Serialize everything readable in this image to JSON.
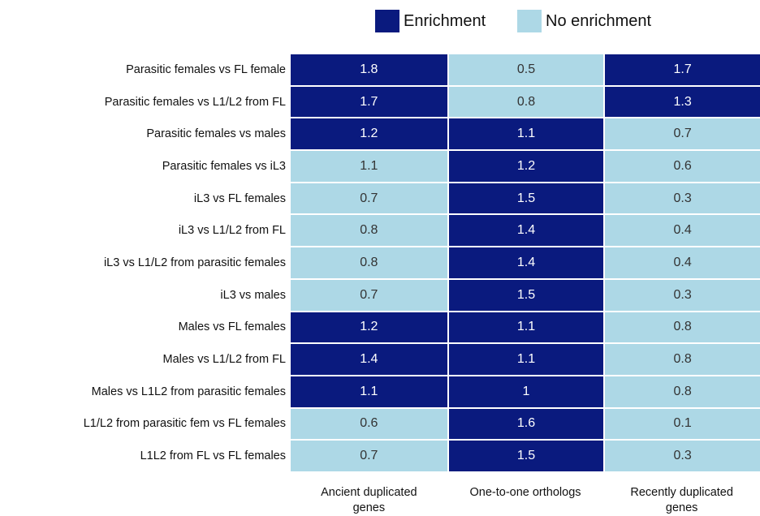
{
  "chart_data": {
    "type": "heatmap",
    "legend": [
      {
        "name": "Enrichment",
        "color": "#0a1a7e"
      },
      {
        "name": "No enrichment",
        "color": "#add8e6"
      }
    ],
    "columns": [
      "Ancient duplicated genes",
      "One-to-one orthologs",
      "Recently duplicated genes"
    ],
    "rows": [
      "Parasitic females vs FL female",
      "Parasitic females vs L1/L2 from FL",
      "Parasitic females vs males",
      "Parasitic females vs iL3",
      "iL3 vs FL females",
      "iL3 vs L1/L2 from FL",
      "iL3 vs L1/L2 from parasitic females",
      "iL3 vs males",
      "Males vs FL females",
      "Males vs  L1/L2  from FL",
      "Males vs L1L2 from parasitic females",
      "L1/L2 from parasitic fem vs FL females",
      "L1L2 from FL vs FL females"
    ],
    "values": [
      [
        1.8,
        0.5,
        1.7
      ],
      [
        1.7,
        0.8,
        1.3
      ],
      [
        1.2,
        1.1,
        0.7
      ],
      [
        1.1,
        1.2,
        0.6
      ],
      [
        0.7,
        1.5,
        0.3
      ],
      [
        0.8,
        1.4,
        0.4
      ],
      [
        0.8,
        1.4,
        0.4
      ],
      [
        0.7,
        1.5,
        0.3
      ],
      [
        1.2,
        1.1,
        0.8
      ],
      [
        1.4,
        1.1,
        0.8
      ],
      [
        1.1,
        1,
        0.8
      ],
      [
        0.6,
        1.6,
        0.1
      ],
      [
        0.7,
        1.5,
        0.3
      ]
    ],
    "classes": [
      [
        0,
        1,
        0
      ],
      [
        0,
        1,
        0
      ],
      [
        0,
        0,
        1
      ],
      [
        1,
        0,
        1
      ],
      [
        1,
        0,
        1
      ],
      [
        1,
        0,
        1
      ],
      [
        1,
        0,
        1
      ],
      [
        1,
        0,
        1
      ],
      [
        0,
        0,
        1
      ],
      [
        0,
        0,
        1
      ],
      [
        0,
        0,
        1
      ],
      [
        1,
        0,
        1
      ],
      [
        1,
        0,
        1
      ]
    ]
  }
}
